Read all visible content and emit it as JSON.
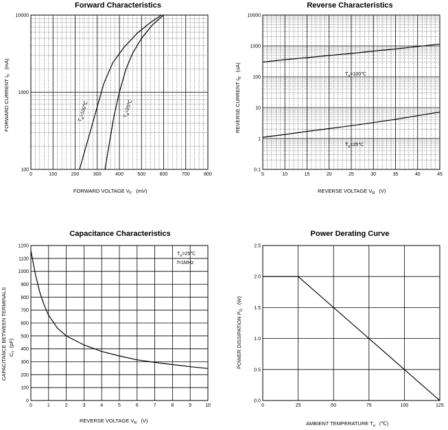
{
  "chart_data": [
    {
      "type": "line",
      "title": "Forward   Characteristics",
      "xlabel": "FORWARD VOLTAGE   V",
      "xlabel_sub": "F",
      "xlabel_unit": "(mV)",
      "ylabel": "FORWARD CURRENT   I",
      "ylabel_sub": "F",
      "ylabel_unit": "(mA)",
      "x_scale": "linear",
      "y_scale": "log",
      "xlim": [
        0,
        800
      ],
      "ylim": [
        100,
        10000
      ],
      "x_ticks": [
        "0",
        "100",
        "200",
        "300",
        "400",
        "500",
        "600",
        "700",
        "800"
      ],
      "y_ticks": [
        "100",
        "1000",
        "10000"
      ],
      "grid": true,
      "series": [
        {
          "name": "Ta=100℃",
          "label_main": "T",
          "label_sub": "a",
          "label_rest": "=100℃",
          "x": [
            220,
            245,
            270,
            300,
            330,
            370,
            420,
            480,
            540,
            590
          ],
          "y": [
            100,
            180,
            320,
            650,
            1300,
            2400,
            3800,
            5800,
            8000,
            10000
          ]
        },
        {
          "name": "Ta=25℃",
          "label_main": "T",
          "label_sub": "a",
          "label_rest": "=25℃",
          "x": [
            335,
            355,
            375,
            400,
            430,
            460,
            500,
            550,
            600
          ],
          "y": [
            100,
            220,
            480,
            1000,
            2000,
            3200,
            5000,
            7500,
            10000
          ]
        }
      ]
    },
    {
      "type": "line",
      "title": "Reverse    Characteristics",
      "xlabel": "REVERSE VOLTAGE   V",
      "xlabel_sub": "R",
      "xlabel_unit": "(V)",
      "ylabel": "REVERSE CURRENT   I",
      "ylabel_sub": "R",
      "ylabel_unit": "(uA)",
      "x_scale": "linear",
      "y_scale": "log",
      "xlim": [
        5,
        45
      ],
      "ylim": [
        0.1,
        10000
      ],
      "x_ticks": [
        "5",
        "10",
        "15",
        "20",
        "25",
        "30",
        "35",
        "40",
        "45"
      ],
      "y_ticks": [
        "0.1",
        "1",
        "10",
        "100",
        "1000",
        "10000"
      ],
      "grid": true,
      "series": [
        {
          "name": "Ta=100℃",
          "label_main": "T",
          "label_sub": "a",
          "label_rest": "=100℃",
          "x": [
            5,
            10,
            15,
            20,
            25,
            30,
            35,
            40,
            45
          ],
          "y": [
            300,
            360,
            420,
            490,
            570,
            680,
            800,
            960,
            1150
          ]
        },
        {
          "name": "Ta=25℃",
          "label_main": "T",
          "label_sub": "a",
          "label_rest": "=25℃",
          "x": [
            5,
            10,
            15,
            20,
            25,
            30,
            35,
            40,
            45
          ],
          "y": [
            1.1,
            1.35,
            1.7,
            2.1,
            2.6,
            3.3,
            4.2,
            5.5,
            7.2
          ]
        }
      ]
    },
    {
      "type": "line",
      "title": "Capacitance Characteristics",
      "xlabel": "REVERSE VOLTAGE   V",
      "xlabel_sub": "R",
      "xlabel_unit": "(V)",
      "ylabel": "CAPACITANCE BETWEEN TERMINALS",
      "ylabel2": "C",
      "ylabel_sub": "T",
      "ylabel_unit": "(pF)",
      "x_scale": "linear",
      "y_scale": "linear",
      "xlim": [
        0,
        10
      ],
      "ylim": [
        0,
        1200
      ],
      "x_ticks": [
        "0",
        "1",
        "2",
        "3",
        "4",
        "5",
        "6",
        "7",
        "8",
        "9",
        "10"
      ],
      "y_ticks": [
        "0",
        "100",
        "200",
        "300",
        "400",
        "500",
        "600",
        "700",
        "800",
        "900",
        "1000",
        "1100",
        "1200"
      ],
      "grid": true,
      "annotation": {
        "line1_main": "T",
        "line1_sub": "a",
        "line1_rest": "=25℃",
        "line2": "f=1MHz"
      },
      "series": [
        {
          "name": "",
          "x": [
            0,
            0.25,
            0.5,
            0.75,
            1,
            1.5,
            2,
            3,
            4,
            5,
            6,
            7,
            8,
            9,
            10
          ],
          "y": [
            1160,
            980,
            840,
            740,
            660,
            560,
            500,
            430,
            380,
            345,
            315,
            295,
            278,
            262,
            248
          ]
        }
      ]
    },
    {
      "type": "line",
      "title": "Power Derating Curve",
      "xlabel": "AMBIENT TEMPERATURE   T",
      "xlabel_sub": "a",
      "xlabel_unit": "(℃)",
      "ylabel": "POWER DISSIPATION   P",
      "ylabel_sub": "D",
      "ylabel_unit": "(W)",
      "x_scale": "linear",
      "y_scale": "linear",
      "xlim": [
        0,
        125
      ],
      "ylim": [
        0,
        2.5
      ],
      "x_ticks": [
        "0",
        "25",
        "50",
        "75",
        "100",
        "125"
      ],
      "y_ticks": [
        "0.0",
        "0.5",
        "1.0",
        "1.5",
        "2.0",
        "2.5"
      ],
      "grid": true,
      "series": [
        {
          "name": "",
          "x": [
            0,
            25,
            125
          ],
          "y": [
            2.0,
            2.0,
            0
          ]
        }
      ]
    }
  ]
}
